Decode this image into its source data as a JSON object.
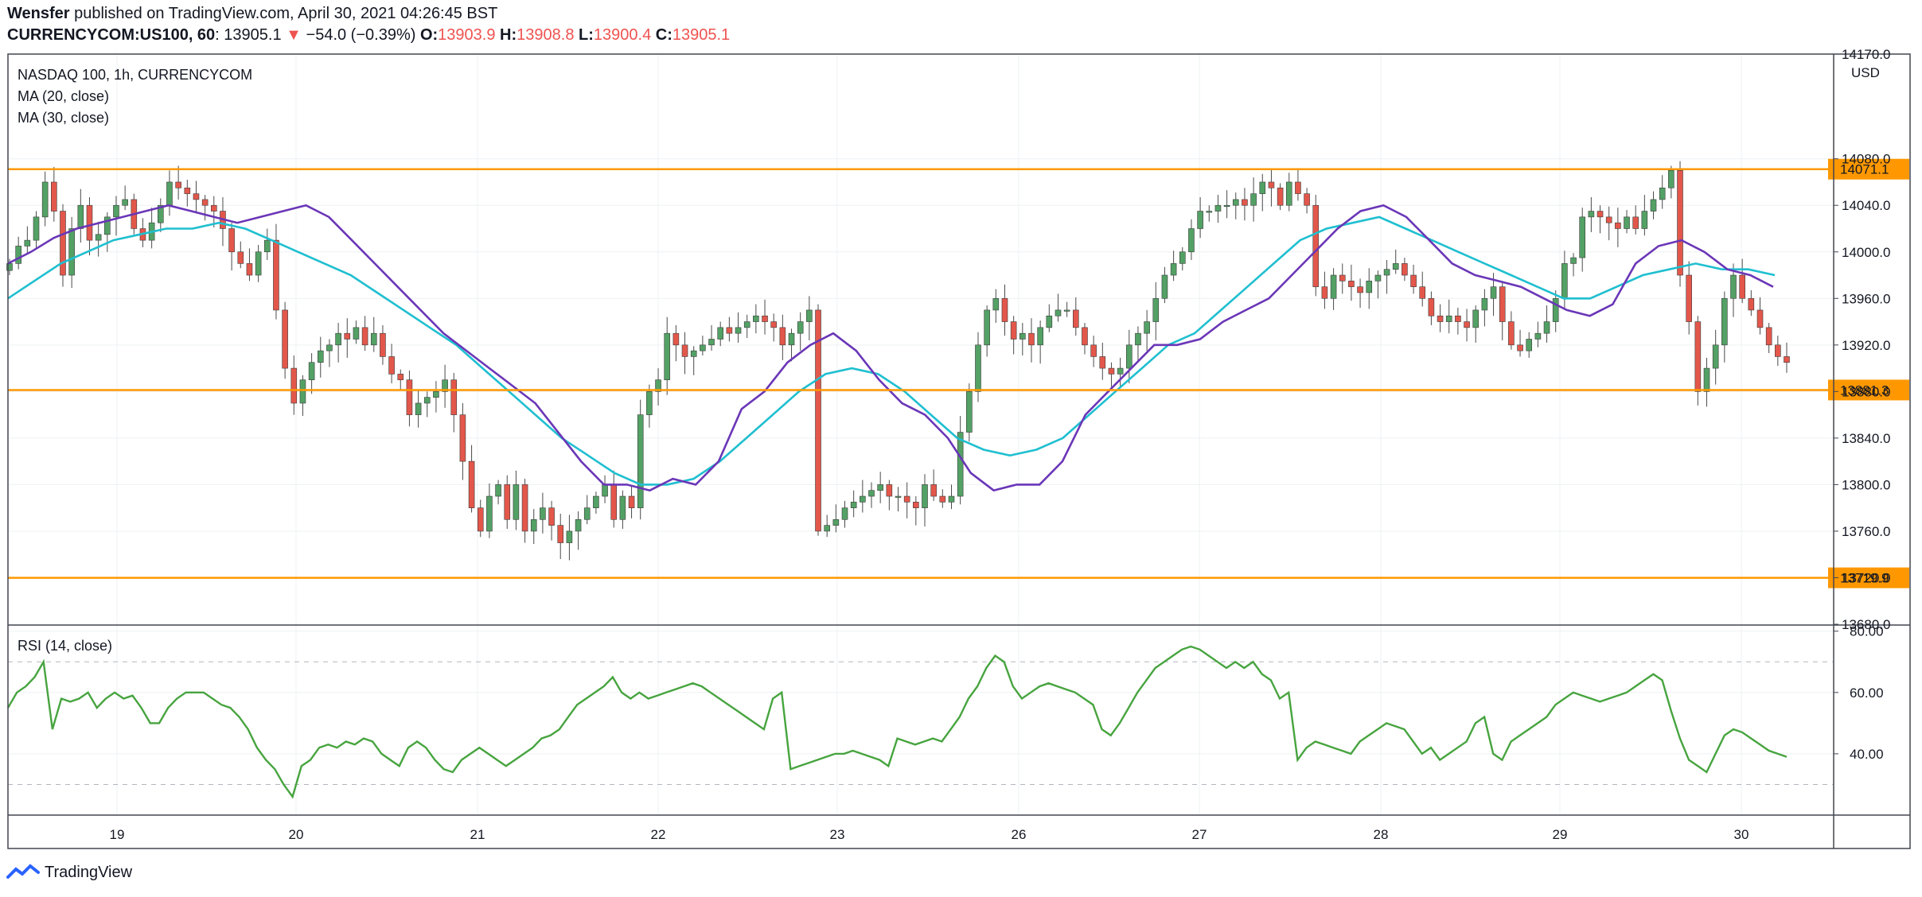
{
  "header": {
    "publisher": "Wensfer",
    "published_text": "published on TradingView.com, April 30, 2021 04:26:45 BST",
    "symbol": "CURRENCYCOM:US100, 60",
    "last": "13905.1",
    "change_arrow": "▼",
    "change": "−54.0 (−0.39%)",
    "open_label": "O:",
    "open": "13903.9",
    "high_label": "H:",
    "high": "13908.8",
    "low_label": "L:",
    "low": "13900.4",
    "close_label": "C:",
    "close": "13905.1"
  },
  "panes": {
    "price_title": "NASDAQ 100, 1h, CURRENCYCOM",
    "ma20_label": "MA (20, close)",
    "ma30_label": "MA (30, close)",
    "rsi_title": "RSI (14, close)",
    "currency": "USD"
  },
  "footer": {
    "brand": "TradingView"
  },
  "colors": {
    "up": "#53a165",
    "down": "#e3574b",
    "ma20": "#6a36b7",
    "ma30": "#1fbfd0",
    "rsi": "#47a43f",
    "level": "#ff9800",
    "grid": "#eef0f3"
  },
  "chart_data": {
    "type": "candlestick",
    "title": "NASDAQ 100, 1h, CURRENCYCOM",
    "x_ticks": [
      "19",
      "20",
      "21",
      "22",
      "23",
      "26",
      "27",
      "28",
      "29",
      "30"
    ],
    "price_axis": {
      "range": [
        13680,
        14170
      ],
      "ticks": [
        "14170.0",
        "14080.0",
        "14040.0",
        "14000.0",
        "13960.0",
        "13920.0",
        "13880.0",
        "13840.0",
        "13800.0",
        "13760.0",
        "13720.0",
        "13680.0"
      ]
    },
    "horizontal_levels": [
      "14071.1",
      "13881.3",
      "13719.9"
    ],
    "close_series": [
      13990,
      14005,
      14010,
      14030,
      14060,
      14035,
      13980,
      14020,
      14040,
      14010,
      14015,
      14030,
      14040,
      14045,
      14020,
      14010,
      14025,
      14040,
      14060,
      14055,
      14050,
      14045,
      14040,
      14035,
      14020,
      14000,
      13990,
      13980,
      14000,
      14010,
      13950,
      13900,
      13870,
      13890,
      13905,
      13915,
      13920,
      13930,
      13925,
      13935,
      13920,
      13930,
      13910,
      13895,
      13890,
      13860,
      13870,
      13875,
      13880,
      13890,
      13860,
      13820,
      13780,
      13760,
      13790,
      13800,
      13770,
      13800,
      13760,
      13770,
      13780,
      13765,
      13750,
      13760,
      13770,
      13780,
      13790,
      13800,
      13770,
      13790,
      13780,
      13860,
      13880,
      13890,
      13930,
      13920,
      13910,
      13915,
      13920,
      13925,
      13935,
      13930,
      13935,
      13940,
      13945,
      13940,
      13935,
      13920,
      13930,
      13940,
      13950,
      13760,
      13765,
      13770,
      13780,
      13785,
      13790,
      13795,
      13800,
      13790,
      13790,
      13785,
      13780,
      13800,
      13790,
      13785,
      13790,
      13845,
      13880,
      13920,
      13950,
      13960,
      13940,
      13925,
      13930,
      13920,
      13935,
      13945,
      13950,
      13950,
      13935,
      13920,
      13910,
      13900,
      13895,
      13900,
      13920,
      13930,
      13940,
      13960,
      13980,
      13990,
      14000,
      14020,
      14035,
      14035,
      14040,
      14040,
      14045,
      14040,
      14050,
      14060,
      14055,
      14040,
      14060,
      14050,
      14040,
      13970,
      13960,
      13980,
      13975,
      13970,
      13965,
      13975,
      13980,
      13985,
      13990,
      13980,
      13970,
      13960,
      13945,
      13940,
      13945,
      13940,
      13935,
      13950,
      13960,
      13970,
      13940,
      13920,
      13915,
      13925,
      13930,
      13940,
      13960,
      13990,
      13995,
      14030,
      14035,
      14030,
      14025,
      14020,
      14030,
      14020,
      14035,
      14045,
      14055,
      14070,
      13980,
      13940,
      13880,
      13900,
      13920,
      13960,
      13980,
      13960,
      13950,
      13935,
      13920,
      13910,
      13905
    ],
    "ma20_series": [
      13990,
      14000,
      14012,
      14020,
      14025,
      14030,
      14035,
      14040,
      14035,
      14030,
      14025,
      14030,
      14035,
      14040,
      14030,
      14010,
      13990,
      13970,
      13950,
      13930,
      13915,
      13900,
      13885,
      13870,
      13845,
      13820,
      13800,
      13800,
      13795,
      13805,
      13800,
      13820,
      13865,
      13880,
      13905,
      13920,
      13930,
      13915,
      13890,
      13870,
      13860,
      13840,
      13810,
      13795,
      13800,
      13800,
      13820,
      13860,
      13880,
      13900,
      13920,
      13920,
      13925,
      13940,
      13950,
      13960,
      13980,
      14000,
      14020,
      14035,
      14040,
      14030,
      14010,
      13990,
      13980,
      13975,
      13970,
      13960,
      13950,
      13945,
      13955,
      13990,
      14005,
      14010,
      14000,
      13985,
      13980,
      13970
    ],
    "ma30_series": [
      13960,
      13975,
      13990,
      14000,
      14010,
      14015,
      14020,
      14020,
      14025,
      14020,
      14010,
      14000,
      13990,
      13980,
      13965,
      13950,
      13935,
      13920,
      13900,
      13880,
      13860,
      13840,
      13825,
      13810,
      13800,
      13800,
      13805,
      13820,
      13840,
      13860,
      13880,
      13895,
      13900,
      13895,
      13880,
      13860,
      13840,
      13830,
      13825,
      13830,
      13840,
      13860,
      13880,
      13900,
      13920,
      13930,
      13950,
      13970,
      13990,
      14010,
      14020,
      14025,
      14030,
      14020,
      14010,
      14000,
      13990,
      13980,
      13970,
      13960,
      13960,
      13970,
      13980,
      13985,
      13990,
      13985,
      13985,
      13980
    ],
    "rsi": {
      "range": [
        20,
        82
      ],
      "ticks": [
        "80.00",
        "60.00",
        "40.00"
      ],
      "bands": [
        70,
        30
      ],
      "series": [
        55,
        60,
        62,
        65,
        70,
        48,
        58,
        57,
        58,
        60,
        55,
        58,
        60,
        58,
        59,
        55,
        50,
        50,
        55,
        58,
        60,
        60,
        60,
        58,
        56,
        55,
        52,
        48,
        42,
        38,
        35,
        30,
        26,
        36,
        38,
        42,
        43,
        42,
        44,
        43,
        45,
        44,
        40,
        38,
        36,
        42,
        44,
        42,
        38,
        35,
        34,
        38,
        40,
        42,
        40,
        38,
        36,
        38,
        40,
        42,
        45,
        46,
        48,
        52,
        56,
        58,
        60,
        62,
        65,
        60,
        58,
        60,
        58,
        59,
        60,
        61,
        62,
        63,
        62,
        60,
        58,
        56,
        54,
        52,
        50,
        48,
        58,
        60,
        35,
        36,
        37,
        38,
        39,
        40,
        40,
        41,
        40,
        39,
        38,
        36,
        45,
        44,
        43,
        44,
        45,
        44,
        48,
        52,
        58,
        62,
        68,
        72,
        70,
        62,
        58,
        60,
        62,
        63,
        62,
        61,
        60,
        58,
        56,
        48,
        46,
        50,
        55,
        60,
        64,
        68,
        70,
        72,
        74,
        75,
        74,
        72,
        70,
        68,
        70,
        68,
        70,
        66,
        64,
        58,
        60,
        38,
        42,
        44,
        43,
        42,
        41,
        40,
        44,
        46,
        48,
        50,
        49,
        48,
        44,
        40,
        42,
        38,
        40,
        42,
        44,
        50,
        52,
        40,
        38,
        44,
        46,
        48,
        50,
        52,
        56,
        58,
        60,
        59,
        58,
        57,
        58,
        59,
        60,
        62,
        64,
        66,
        64,
        54,
        45,
        38,
        36,
        34,
        40,
        46,
        48,
        47,
        45,
        43,
        41,
        40,
        39
      ]
    }
  }
}
